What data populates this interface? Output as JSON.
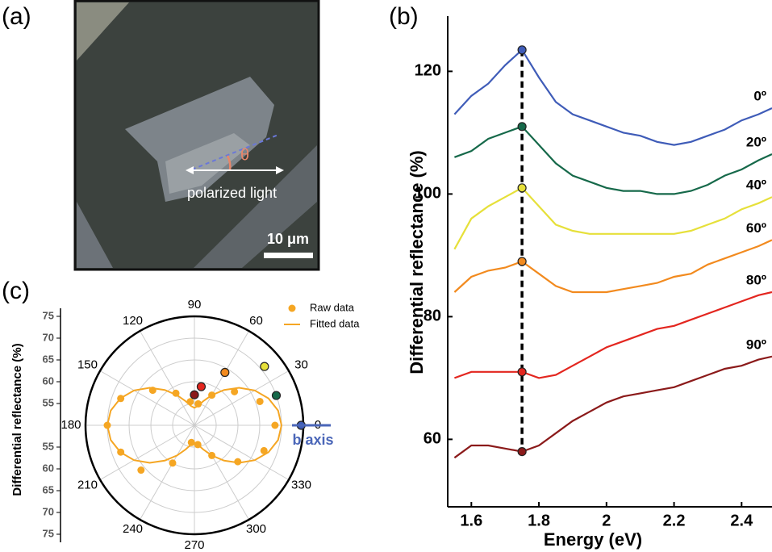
{
  "panel_a": {
    "label": "(a)",
    "angle_symbol": "θ",
    "caption": "polarized light",
    "scale_bar": "10 μm"
  },
  "chart_data": [
    {
      "type": "line",
      "panel_label": "(b)",
      "x_label": "Energy (eV)",
      "y_label": "Differential reflectance (%)",
      "x": [
        1.55,
        1.6,
        1.65,
        1.7,
        1.75,
        1.8,
        1.85,
        1.9,
        1.95,
        2.0,
        2.05,
        2.1,
        2.15,
        2.2,
        2.25,
        2.3,
        2.35,
        2.4,
        2.45,
        2.49
      ],
      "series": [
        {
          "name": "0º",
          "color": "#3f5cb8",
          "values": [
            113,
            116,
            118,
            121,
            123.5,
            119,
            115,
            113,
            112,
            111,
            110,
            109.5,
            108.5,
            108,
            108.5,
            109.5,
            110.5,
            112,
            113,
            114
          ]
        },
        {
          "name": "20º",
          "color": "#16694a",
          "values": [
            106,
            107,
            109,
            110,
            111,
            108,
            105,
            103,
            102,
            101,
            100.5,
            100.5,
            100,
            100,
            100.5,
            101.5,
            103,
            104,
            105.5,
            106.5
          ]
        },
        {
          "name": "40º",
          "color": "#e6e03a",
          "values": [
            91,
            96,
            98,
            99.5,
            101,
            98,
            95,
            94,
            93.5,
            93.5,
            93.5,
            93.5,
            93.5,
            93.5,
            94,
            95,
            96,
            97.5,
            98.5,
            99.5
          ]
        },
        {
          "name": "60º",
          "color": "#f28a1e",
          "values": [
            84,
            86.5,
            87.5,
            88,
            89,
            87,
            85,
            84,
            84,
            84,
            84.5,
            85,
            85.5,
            86.5,
            87,
            88.5,
            89.5,
            90.5,
            91.5,
            92.5
          ]
        },
        {
          "name": "80º",
          "color": "#e3261f",
          "values": [
            70,
            71,
            71,
            71,
            71,
            70,
            70.5,
            72,
            73.5,
            75,
            76,
            77,
            78,
            78.5,
            79.5,
            80.5,
            81.5,
            82.5,
            83.5,
            84
          ]
        },
        {
          "name": "90º",
          "color": "#8b1a1a",
          "values": [
            57,
            59,
            59,
            58.5,
            58,
            59,
            61,
            63,
            64.5,
            66,
            67,
            67.5,
            68,
            68.5,
            69.5,
            70.5,
            71.5,
            72,
            73,
            73.5
          ]
        }
      ],
      "markers_at_x": 1.75,
      "xlim": [
        1.53,
        2.49
      ],
      "xticks": [
        1.6,
        1.8,
        2.0,
        2.2,
        2.4
      ],
      "ylim": [
        49,
        129
      ],
      "yticks": [
        60,
        80,
        100,
        120
      ]
    },
    {
      "type": "polar",
      "panel_label": "(c)",
      "r_label": "Differential reflectance (%)",
      "rlim": [
        50,
        75
      ],
      "rticks": [
        55,
        60,
        65,
        70,
        75
      ],
      "thetaticks": [
        0,
        30,
        60,
        90,
        120,
        150,
        180,
        210,
        240,
        270,
        300,
        330
      ],
      "series": [
        {
          "name": "Raw data",
          "mode": "markers",
          "color": "#f5a623",
          "theta": [
            0,
            20,
            40,
            60,
            80,
            100,
            120,
            140,
            160,
            180,
            200,
            220,
            240,
            260,
            280,
            300,
            320,
            340
          ],
          "r": [
            68.5,
            66,
            62,
            58,
            55,
            55.5,
            58.5,
            62.5,
            68,
            70,
            68,
            66,
            60,
            54,
            54.5,
            58,
            63,
            67
          ]
        },
        {
          "name": "Fitted data",
          "mode": "line",
          "color": "#f5a623",
          "theta": [
            0,
            10,
            20,
            30,
            40,
            50,
            60,
            70,
            80,
            90,
            100,
            110,
            120,
            130,
            140,
            150,
            160,
            170,
            180,
            190,
            200,
            210,
            220,
            230,
            240,
            250,
            260,
            270,
            280,
            290,
            300,
            310,
            320,
            330,
            340,
            350,
            360
          ],
          "r": [
            70,
            69.5,
            68.1,
            66,
            63.4,
            60.6,
            58,
            55.9,
            54.5,
            54,
            54.5,
            55.9,
            58,
            60.6,
            63.4,
            66,
            68.1,
            69.5,
            70,
            69.5,
            68.1,
            66,
            63.4,
            60.6,
            58,
            55.9,
            54.5,
            54,
            54.5,
            55.9,
            58,
            60.6,
            63.4,
            66,
            68.1,
            69.5,
            70
          ]
        },
        {
          "mode": "markers",
          "colors": [
            "#3f5cb8",
            "#16694a",
            "#e6e03a",
            "#f28a1e",
            "#e3261f",
            "#8b1a1a"
          ],
          "theta": [
            0,
            20,
            40,
            60,
            80,
            90
          ],
          "r": [
            74.5,
            70,
            71,
            64,
            59,
            57
          ]
        }
      ],
      "annotation": {
        "text": "b axis",
        "color": "#4a66b8"
      }
    }
  ]
}
